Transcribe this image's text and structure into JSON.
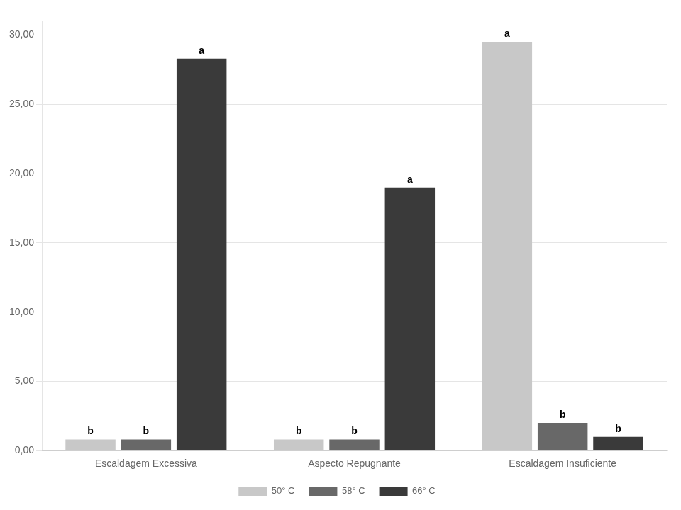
{
  "chart_data": {
    "type": "bar",
    "categories": [
      "Escaldagem Excessiva",
      "Aspecto Repugnante",
      "Escaldagem Insuficiente"
    ],
    "series": [
      {
        "name": "50° C",
        "color": "#c8c8c8",
        "values": [
          0.8,
          0.8,
          29.5
        ],
        "annotations": [
          "b",
          "b",
          "a"
        ]
      },
      {
        "name": "58° C",
        "color": "#686868",
        "values": [
          0.8,
          0.8,
          2.0
        ],
        "annotations": [
          "b",
          "b",
          "b"
        ]
      },
      {
        "name": "66° C",
        "color": "#3a3a3a",
        "values": [
          28.3,
          19.0,
          1.0
        ],
        "annotations": [
          "a",
          "a",
          "b"
        ]
      }
    ],
    "ylim": [
      0,
      31
    ],
    "yticks": [
      {
        "value": 0,
        "label": "0,00"
      },
      {
        "value": 5,
        "label": "5,00"
      },
      {
        "value": 10,
        "label": "10,00"
      },
      {
        "value": 15,
        "label": "15,00"
      },
      {
        "value": 20,
        "label": "20,00"
      },
      {
        "value": 25,
        "label": "25,00"
      },
      {
        "value": 30,
        "label": "30,00"
      }
    ],
    "grid": true,
    "legend": "bottom"
  }
}
